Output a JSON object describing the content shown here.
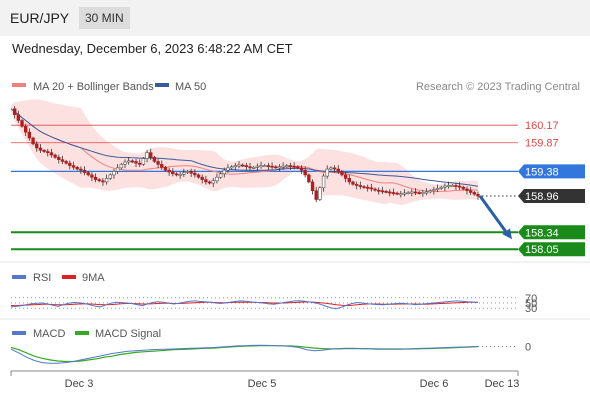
{
  "header": {
    "pair": "EUR/JPY",
    "timeframe": "30 MIN",
    "datetime": "Wednesday, December 6, 2023 6:48:22 AM CET"
  },
  "colors": {
    "bollinger_band": "#fde0e0",
    "ma20": "#f08080",
    "ma50": "#3a5a9a",
    "resistance": "#e04848",
    "pivot": "#3377dd",
    "support": "#1a8a1a",
    "current_price_box": "#333333",
    "arrow": "#2a5ea8",
    "rsi": "#5577cc",
    "rsi_9ma": "#dd2222",
    "macd": "#5577cc",
    "macd_signal": "#33aa22"
  },
  "chart_data": [
    {
      "type": "candlestick",
      "legend": [
        {
          "label": "MA 20 + Bollinger Bands",
          "color": "#f08080"
        },
        {
          "label": "MA 50",
          "color": "#3a5a9a"
        }
      ],
      "credit": "Research © 2023 Trading Central",
      "ylim": [
        157.9,
        160.6
      ],
      "levels": [
        {
          "label": "160.17",
          "value": 160.17,
          "kind": "resistance"
        },
        {
          "label": "159.87",
          "value": 159.87,
          "kind": "resistance"
        },
        {
          "label": "159.38",
          "value": 159.38,
          "kind": "pivot"
        },
        {
          "label": "158.96",
          "value": 158.96,
          "kind": "current"
        },
        {
          "label": "158.34",
          "value": 158.34,
          "kind": "support"
        },
        {
          "label": "158.05",
          "value": 158.05,
          "kind": "support"
        }
      ],
      "close_series": [
        160.45,
        160.35,
        160.25,
        160.15,
        160.05,
        159.95,
        159.85,
        159.78,
        159.74,
        159.72,
        159.7,
        159.66,
        159.62,
        159.58,
        159.55,
        159.52,
        159.48,
        159.45,
        159.42,
        159.4,
        159.36,
        159.32,
        159.28,
        159.24,
        159.22,
        159.2,
        159.26,
        159.32,
        159.38,
        159.44,
        159.5,
        159.54,
        159.56,
        159.55,
        159.52,
        159.5,
        159.6,
        159.7,
        159.62,
        159.55,
        159.5,
        159.45,
        159.4,
        159.37,
        159.34,
        159.32,
        159.33,
        159.36,
        159.38,
        159.35,
        159.32,
        159.28,
        159.24,
        159.2,
        159.18,
        159.22,
        159.28,
        159.34,
        159.4,
        159.44,
        159.46,
        159.48,
        159.49,
        159.48,
        159.46,
        159.44,
        159.45,
        159.47,
        159.48,
        159.48,
        159.47,
        159.46,
        159.45,
        159.46,
        159.47,
        159.48,
        159.47,
        159.46,
        159.44,
        159.4,
        159.32,
        159.2,
        159.05,
        158.9,
        159.1,
        159.3,
        159.42,
        159.44,
        159.42,
        159.38,
        159.32,
        159.26,
        159.2,
        159.16,
        159.14,
        159.12,
        159.11,
        159.1,
        159.08,
        159.06,
        159.05,
        159.04,
        159.03,
        159.02,
        159.01,
        159.0,
        159.0,
        159.01,
        159.02,
        159.03,
        159.02,
        159.01,
        159.02,
        159.03,
        159.05,
        159.07,
        159.09,
        159.11,
        159.13,
        159.14,
        159.14,
        159.13,
        159.11,
        159.08,
        159.05,
        159.02,
        158.99,
        158.96
      ],
      "forecast_arrow": {
        "from": 158.96,
        "to": 158.34
      }
    },
    {
      "type": "line",
      "legend": [
        {
          "label": "RSI",
          "color": "#5577cc"
        },
        {
          "label": "9MA",
          "color": "#dd2222"
        }
      ],
      "ylim": [
        0,
        100
      ],
      "levels": [
        {
          "label": "70",
          "value": 70
        },
        {
          "label": "50",
          "value": 50
        },
        {
          "label": "30",
          "value": 30
        }
      ],
      "series": [
        {
          "name": "RSI",
          "values": [
            35,
            37,
            40,
            44,
            47,
            49,
            50,
            46,
            41,
            37,
            44,
            49,
            52,
            51,
            48,
            43,
            38,
            35,
            42,
            49,
            53,
            52,
            50,
            48,
            44,
            40,
            46,
            52,
            55,
            53,
            50,
            46,
            49,
            53,
            57,
            58,
            56,
            55,
            53,
            50,
            48,
            51,
            54,
            57,
            58,
            56,
            54,
            52,
            50,
            47,
            45,
            48,
            52,
            55,
            58,
            59,
            57,
            54,
            50,
            45,
            38,
            31,
            28,
            34,
            42,
            48,
            52,
            50,
            47,
            45,
            44,
            43,
            45,
            47,
            49,
            48,
            46,
            44,
            45,
            47,
            49,
            51,
            53,
            55,
            57,
            58,
            57,
            55,
            54,
            52
          ]
        },
        {
          "name": "9MA",
          "values": [
            40,
            40,
            41,
            42,
            43,
            44,
            45,
            45,
            44,
            43,
            43,
            44,
            45,
            46,
            47,
            46,
            45,
            44,
            43,
            44,
            45,
            47,
            48,
            48,
            47,
            46,
            46,
            47,
            48,
            49,
            49,
            48,
            48,
            49,
            50,
            51,
            52,
            53,
            53,
            52,
            51,
            51,
            52,
            53,
            53,
            53,
            53,
            52,
            52,
            51,
            50,
            50,
            50,
            51,
            52,
            53,
            54,
            54,
            53,
            51,
            49,
            46,
            43,
            41,
            40,
            41,
            43,
            45,
            46,
            46,
            46,
            45,
            45,
            45,
            46,
            46,
            46,
            46,
            45,
            45,
            46,
            47,
            48,
            49,
            50,
            51,
            52,
            53,
            53,
            53
          ]
        }
      ]
    },
    {
      "type": "line",
      "legend": [
        {
          "label": "MACD",
          "color": "#5577cc"
        },
        {
          "label": "MACD Signal",
          "color": "#33aa22"
        }
      ],
      "levels": [
        {
          "label": "0",
          "value": 0
        }
      ],
      "ylim": [
        -0.4,
        0.12
      ],
      "series": [
        {
          "name": "MACD",
          "values": [
            -0.05,
            -0.12,
            -0.2,
            -0.26,
            -0.3,
            -0.31,
            -0.31,
            -0.3,
            -0.28,
            -0.25,
            -0.22,
            -0.19,
            -0.16,
            -0.13,
            -0.11,
            -0.09,
            -0.08,
            -0.07,
            -0.06,
            -0.055,
            -0.05,
            -0.045,
            -0.04,
            -0.035,
            -0.03,
            -0.025,
            -0.02,
            -0.01,
            0,
            0.01,
            0.015,
            0.02,
            0.022,
            0.02,
            0.015,
            0.01,
            0.0,
            -0.02,
            -0.06,
            -0.08,
            -0.07,
            -0.05,
            -0.04,
            -0.035,
            -0.035,
            -0.04,
            -0.045,
            -0.05,
            -0.05,
            -0.05,
            -0.05,
            -0.045,
            -0.04,
            -0.035,
            -0.03,
            -0.025,
            -0.02,
            -0.015,
            -0.01,
            -0.005,
            0.0
          ]
        },
        {
          "name": "MACD Signal",
          "values": [
            -0.02,
            -0.06,
            -0.12,
            -0.18,
            -0.22,
            -0.25,
            -0.27,
            -0.28,
            -0.28,
            -0.27,
            -0.25,
            -0.23,
            -0.2,
            -0.18,
            -0.15,
            -0.13,
            -0.11,
            -0.1,
            -0.09,
            -0.08,
            -0.07,
            -0.06,
            -0.055,
            -0.05,
            -0.04,
            -0.035,
            -0.03,
            -0.02,
            -0.01,
            0,
            0.005,
            0.01,
            0.015,
            0.015,
            0.015,
            0.012,
            0.008,
            0.0,
            -0.015,
            -0.03,
            -0.04,
            -0.045,
            -0.045,
            -0.042,
            -0.04,
            -0.04,
            -0.042,
            -0.045,
            -0.047,
            -0.048,
            -0.048,
            -0.047,
            -0.045,
            -0.042,
            -0.038,
            -0.033,
            -0.028,
            -0.022,
            -0.016,
            -0.01,
            -0.005
          ]
        }
      ]
    }
  ],
  "x_axis": {
    "ticks": [
      {
        "label": "Dec 3"
      },
      {
        "label": "Dec 5"
      },
      {
        "label": "Dec 6"
      },
      {
        "label": "Dec 13"
      }
    ]
  }
}
